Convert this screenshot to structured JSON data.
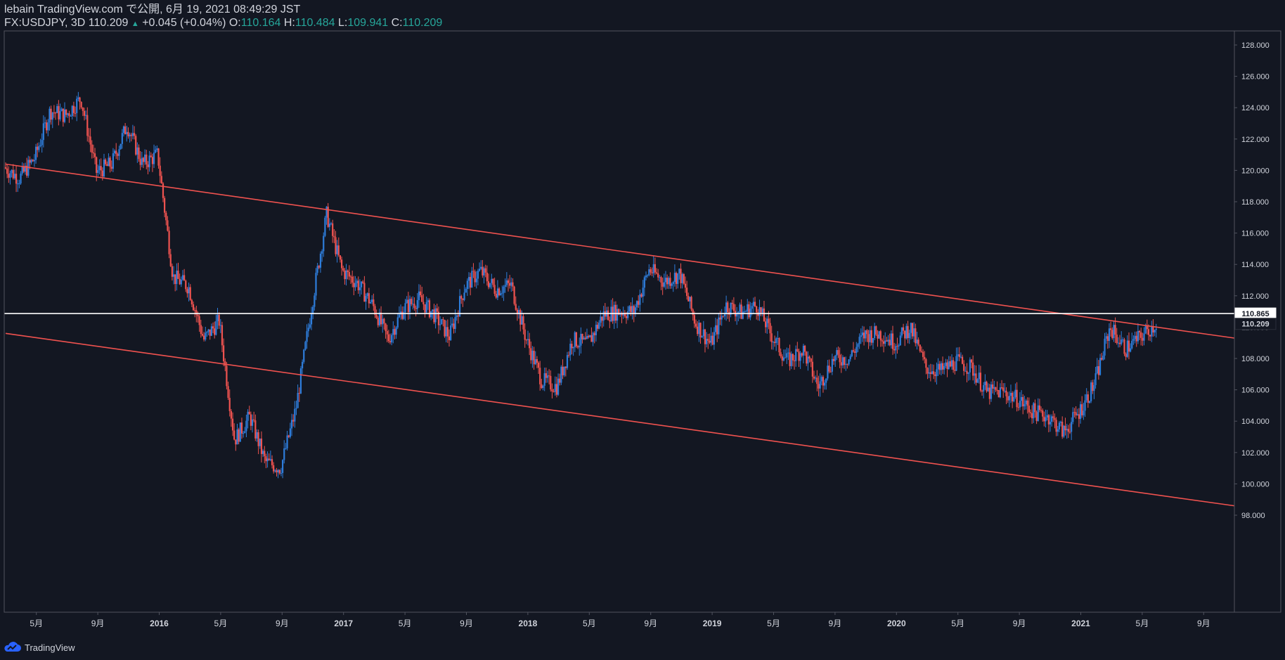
{
  "header": {
    "line1": "lebain TradingView.com で公開, 6月 19, 2021 08:49:29 JST",
    "symbol": "FX:USDJPY, 3D",
    "last": "110.209",
    "change": "+0.045 (+0.04%)",
    "o_label": "O:",
    "o_value": "110.164",
    "h_label": "H:",
    "h_value": "110.484",
    "l_label": "L:",
    "l_value": "109.941",
    "c_label": "C:",
    "c_value": "110.209"
  },
  "footer": {
    "brand": "TradingView"
  },
  "colors": {
    "background": "#131722",
    "up": "#2e7ddb",
    "down": "#ef5350",
    "trendline": "#f0524f",
    "hline": "#ffffff",
    "axis_text": "#d1d4dc",
    "border": "#50535e"
  },
  "chart_data": {
    "type": "candlestick",
    "symbol": "FX:USDJPY",
    "interval": "3D",
    "ylim": [
      96,
      129
    ],
    "y_ticks": [
      98,
      100,
      102,
      104,
      106,
      108,
      110,
      112,
      114,
      116,
      118,
      120,
      122,
      124,
      126,
      128
    ],
    "x_ticks": [
      "5月",
      "9月",
      "2016",
      "5月",
      "9月",
      "2017",
      "5月",
      "9月",
      "2018",
      "5月",
      "9月",
      "2019",
      "5月",
      "9月",
      "2020",
      "5月",
      "9月",
      "2021",
      "5月",
      "9月"
    ],
    "price_labels": [
      {
        "value": 110.865,
        "label": "110.865",
        "style": "white"
      },
      {
        "value": 110.209,
        "label": "110.209",
        "style": "dark"
      }
    ],
    "horizontal_line": 110.865,
    "trend_lines": [
      {
        "from": {
          "x": "2015-03",
          "y": 120.4
        },
        "to": {
          "x": "2021-11",
          "y": 109.3
        }
      },
      {
        "from": {
          "x": "2015-03",
          "y": 109.6
        },
        "to": {
          "x": "2021-11",
          "y": 98.6
        }
      }
    ],
    "price_path": [
      [
        "2015-03",
        120.2
      ],
      [
        "2015-04",
        119.5
      ],
      [
        "2015-05",
        120.8
      ],
      [
        "2015-06",
        123.8
      ],
      [
        "2015-07",
        123.5
      ],
      [
        "2015-08",
        124.6
      ],
      [
        "2015-09",
        119.9
      ],
      [
        "2015-10",
        120.4
      ],
      [
        "2015-11",
        122.9
      ],
      [
        "2015-12",
        120.4
      ],
      [
        "2016-01",
        121.0
      ],
      [
        "2016-02",
        113.2
      ],
      [
        "2016-03",
        112.6
      ],
      [
        "2016-04",
        109.2
      ],
      [
        "2016-05",
        110.4
      ],
      [
        "2016-06",
        102.8
      ],
      [
        "2016-07",
        104.3
      ],
      [
        "2016-08",
        101.4
      ],
      [
        "2016-09",
        101.0
      ],
      [
        "2016-10",
        104.8
      ],
      [
        "2016-11",
        111.2
      ],
      [
        "2016-12",
        117.2
      ],
      [
        "2017-01",
        113.6
      ],
      [
        "2017-02",
        112.8
      ],
      [
        "2017-03",
        111.4
      ],
      [
        "2017-04",
        109.2
      ],
      [
        "2017-05",
        111.2
      ],
      [
        "2017-06",
        111.8
      ],
      [
        "2017-07",
        110.8
      ],
      [
        "2017-08",
        109.4
      ],
      [
        "2017-09",
        112.6
      ],
      [
        "2017-10",
        113.6
      ],
      [
        "2017-11",
        112.4
      ],
      [
        "2017-12",
        112.7
      ],
      [
        "2018-01",
        109.2
      ],
      [
        "2018-02",
        106.6
      ],
      [
        "2018-03",
        106.2
      ],
      [
        "2018-04",
        109.2
      ],
      [
        "2018-05",
        108.9
      ],
      [
        "2018-06",
        110.8
      ],
      [
        "2018-07",
        111.0
      ],
      [
        "2018-08",
        111.0
      ],
      [
        "2018-09",
        113.7
      ],
      [
        "2018-10",
        112.9
      ],
      [
        "2018-11",
        113.4
      ],
      [
        "2018-12",
        110.3
      ],
      [
        "2019-01",
        108.9
      ],
      [
        "2019-02",
        111.4
      ],
      [
        "2019-03",
        110.9
      ],
      [
        "2019-04",
        111.4
      ],
      [
        "2019-05",
        109.4
      ],
      [
        "2019-06",
        107.8
      ],
      [
        "2019-07",
        108.6
      ],
      [
        "2019-08",
        106.2
      ],
      [
        "2019-09",
        108.0
      ],
      [
        "2019-10",
        108.0
      ],
      [
        "2019-11",
        109.5
      ],
      [
        "2019-12",
        109.6
      ],
      [
        "2020-01",
        109.0
      ],
      [
        "2020-02",
        110.0
      ],
      [
        "2020-03",
        107.4
      ],
      [
        "2020-04",
        107.2
      ],
      [
        "2020-05",
        107.8
      ],
      [
        "2020-06",
        107.4
      ],
      [
        "2020-07",
        105.8
      ],
      [
        "2020-08",
        105.9
      ],
      [
        "2020-09",
        105.4
      ],
      [
        "2020-10",
        104.6
      ],
      [
        "2020-11",
        104.3
      ],
      [
        "2020-12",
        103.3
      ],
      [
        "2021-01",
        104.6
      ],
      [
        "2021-02",
        106.4
      ],
      [
        "2021-03",
        110.0
      ],
      [
        "2021-04",
        108.6
      ],
      [
        "2021-05",
        109.4
      ],
      [
        "2021-06",
        110.2
      ]
    ]
  }
}
